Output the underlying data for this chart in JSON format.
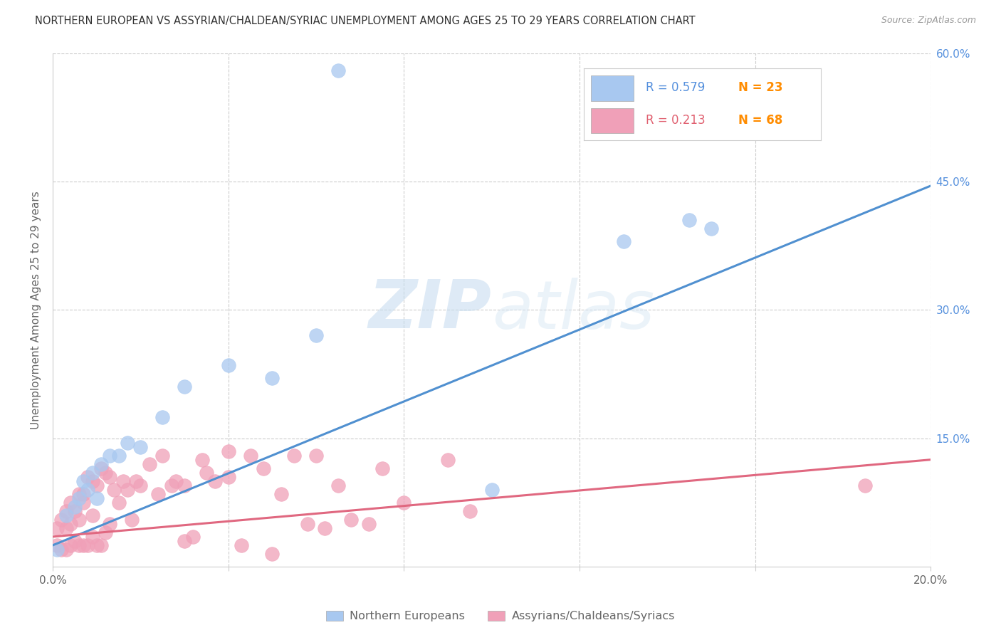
{
  "title": "NORTHERN EUROPEAN VS ASSYRIAN/CHALDEAN/SYRIAC UNEMPLOYMENT AMONG AGES 25 TO 29 YEARS CORRELATION CHART",
  "source": "Source: ZipAtlas.com",
  "ylabel": "Unemployment Among Ages 25 to 29 years",
  "xlim": [
    0.0,
    0.2
  ],
  "ylim": [
    0.0,
    0.6
  ],
  "xticks": [
    0.0,
    0.04,
    0.08,
    0.12,
    0.16,
    0.2
  ],
  "yticks": [
    0.0,
    0.15,
    0.3,
    0.45,
    0.6
  ],
  "blue_R": 0.579,
  "blue_N": 23,
  "pink_R": 0.213,
  "pink_N": 68,
  "blue_color": "#a8c8f0",
  "pink_color": "#f0a0b8",
  "blue_line_color": "#5090d0",
  "pink_line_color": "#e06880",
  "watermark_zip": "ZIP",
  "watermark_atlas": "atlas",
  "legend_label_blue": "Northern Europeans",
  "legend_label_pink": "Assyrians/Chaldeans/Syriacs",
  "blue_line_x0": 0.0,
  "blue_line_y0": 0.025,
  "blue_line_x1": 0.2,
  "blue_line_y1": 0.445,
  "pink_line_x0": 0.0,
  "pink_line_y0": 0.035,
  "pink_line_x1": 0.2,
  "pink_line_y1": 0.125,
  "blue_dots_x": [
    0.001,
    0.003,
    0.005,
    0.006,
    0.007,
    0.008,
    0.009,
    0.01,
    0.011,
    0.013,
    0.015,
    0.017,
    0.02,
    0.025,
    0.03,
    0.04,
    0.05,
    0.06,
    0.065,
    0.1,
    0.13,
    0.145,
    0.15
  ],
  "blue_dots_y": [
    0.02,
    0.06,
    0.07,
    0.08,
    0.1,
    0.09,
    0.11,
    0.08,
    0.12,
    0.13,
    0.13,
    0.145,
    0.14,
    0.175,
    0.21,
    0.235,
    0.22,
    0.27,
    0.58,
    0.09,
    0.38,
    0.405,
    0.395
  ],
  "pink_dots_x": [
    0.001,
    0.001,
    0.002,
    0.002,
    0.003,
    0.003,
    0.003,
    0.004,
    0.004,
    0.004,
    0.005,
    0.005,
    0.006,
    0.006,
    0.006,
    0.007,
    0.007,
    0.007,
    0.008,
    0.008,
    0.009,
    0.009,
    0.009,
    0.01,
    0.01,
    0.011,
    0.011,
    0.012,
    0.012,
    0.013,
    0.013,
    0.014,
    0.015,
    0.016,
    0.017,
    0.018,
    0.019,
    0.02,
    0.022,
    0.024,
    0.025,
    0.027,
    0.028,
    0.03,
    0.03,
    0.032,
    0.034,
    0.035,
    0.037,
    0.04,
    0.04,
    0.043,
    0.045,
    0.048,
    0.05,
    0.052,
    0.055,
    0.058,
    0.06,
    0.062,
    0.065,
    0.068,
    0.072,
    0.075,
    0.08,
    0.09,
    0.095,
    0.185
  ],
  "pink_dots_y": [
    0.025,
    0.045,
    0.02,
    0.055,
    0.02,
    0.045,
    0.065,
    0.025,
    0.05,
    0.075,
    0.03,
    0.065,
    0.025,
    0.055,
    0.085,
    0.025,
    0.075,
    0.085,
    0.025,
    0.105,
    0.035,
    0.06,
    0.1,
    0.025,
    0.095,
    0.025,
    0.115,
    0.04,
    0.11,
    0.05,
    0.105,
    0.09,
    0.075,
    0.1,
    0.09,
    0.055,
    0.1,
    0.095,
    0.12,
    0.085,
    0.13,
    0.095,
    0.1,
    0.03,
    0.095,
    0.035,
    0.125,
    0.11,
    0.1,
    0.105,
    0.135,
    0.025,
    0.13,
    0.115,
    0.015,
    0.085,
    0.13,
    0.05,
    0.13,
    0.045,
    0.095,
    0.055,
    0.05,
    0.115,
    0.075,
    0.125,
    0.065,
    0.095
  ]
}
